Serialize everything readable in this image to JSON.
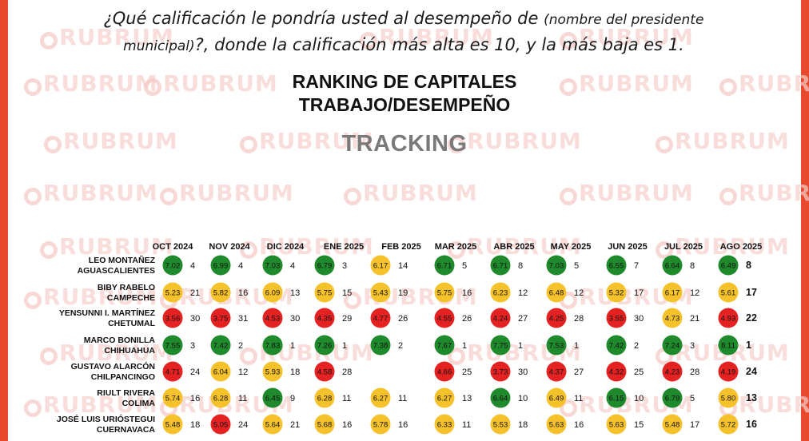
{
  "header": {
    "question_part1": "¿Qué calificación le pondría usted al desempeño de ",
    "question_small1": "(nombre del presidente",
    "question_small2": "municipal)",
    "question_part2": "?, donde la calificación más alta es 10, y la más baja es 1.",
    "title_line1": "RANKING DE CAPITALES",
    "title_line2": "TRABAJO/DESEMPEÑO",
    "subtitle": "TRACKING",
    "watermark": "RUBRUM"
  },
  "colors": {
    "frame": "#e8482c",
    "green": "#1f8a2c",
    "yellow": "#f6c22b",
    "red": "#e52222"
  },
  "chart_data": {
    "type": "table",
    "months": [
      "OCT 2024",
      "NOV 2024",
      "DIC 2024",
      "ENE 2025",
      "FEB 2025",
      "MAR 2025",
      "ABR 2025",
      "MAY 2025",
      "JUN 2025",
      "JUL 2025",
      "AGO 2025"
    ],
    "rows": [
      {
        "name": "LEO MONTAÑEZ",
        "city": "AGUASCALIENTES",
        "cells": [
          {
            "score": "7.02",
            "rank": "4",
            "color": "green"
          },
          {
            "score": "6.99",
            "rank": "4",
            "color": "green"
          },
          {
            "score": "7.03",
            "rank": "4",
            "color": "green"
          },
          {
            "score": "6.79",
            "rank": "3",
            "color": "green"
          },
          {
            "score": "6.17",
            "rank": "14",
            "color": "yellow"
          },
          {
            "score": "6.71",
            "rank": "5",
            "color": "green"
          },
          {
            "score": "6.71",
            "rank": "8",
            "color": "green"
          },
          {
            "score": "7.03",
            "rank": "5",
            "color": "green"
          },
          {
            "score": "6.55",
            "rank": "7",
            "color": "green"
          },
          {
            "score": "6.64",
            "rank": "8",
            "color": "green"
          },
          {
            "score": "6.49",
            "rank": "8",
            "color": "green"
          }
        ]
      },
      {
        "name": "BIBY RABELO",
        "city": "CAMPECHE",
        "cells": [
          {
            "score": "5.23",
            "rank": "21",
            "color": "yellow"
          },
          {
            "score": "5.82",
            "rank": "16",
            "color": "yellow"
          },
          {
            "score": "6.09",
            "rank": "13",
            "color": "yellow"
          },
          {
            "score": "5.75",
            "rank": "15",
            "color": "yellow"
          },
          {
            "score": "5.43",
            "rank": "19",
            "color": "yellow"
          },
          {
            "score": "5.75",
            "rank": "16",
            "color": "yellow"
          },
          {
            "score": "6.23",
            "rank": "12",
            "color": "yellow"
          },
          {
            "score": "6.48",
            "rank": "12",
            "color": "yellow"
          },
          {
            "score": "5.32",
            "rank": "17",
            "color": "yellow"
          },
          {
            "score": "6.17",
            "rank": "12",
            "color": "yellow"
          },
          {
            "score": "5.61",
            "rank": "17",
            "color": "yellow"
          }
        ]
      },
      {
        "name": "YENSUNNI I. MARTÍNEZ",
        "city": "CHETUMAL",
        "cells": [
          {
            "score": "3.56",
            "rank": "30",
            "color": "red"
          },
          {
            "score": "3.75",
            "rank": "31",
            "color": "red"
          },
          {
            "score": "4.53",
            "rank": "30",
            "color": "red"
          },
          {
            "score": "4.35",
            "rank": "29",
            "color": "red"
          },
          {
            "score": "4.77",
            "rank": "26",
            "color": "red"
          },
          {
            "score": "4.55",
            "rank": "26",
            "color": "red"
          },
          {
            "score": "4.24",
            "rank": "27",
            "color": "red"
          },
          {
            "score": "4.25",
            "rank": "28",
            "color": "red"
          },
          {
            "score": "3.55",
            "rank": "30",
            "color": "red"
          },
          {
            "score": "4.73",
            "rank": "21",
            "color": "yellow"
          },
          {
            "score": "4.93",
            "rank": "22",
            "color": "red"
          }
        ]
      },
      {
        "name": "MARCO BONILLA",
        "city": "CHIHUAHUA",
        "cells": [
          {
            "score": "7.55",
            "rank": "3",
            "color": "green"
          },
          {
            "score": "7.42",
            "rank": "2",
            "color": "green"
          },
          {
            "score": "7.83",
            "rank": "1",
            "color": "green"
          },
          {
            "score": "7.26",
            "rank": "1",
            "color": "green"
          },
          {
            "score": "7.38",
            "rank": "2",
            "color": "green"
          },
          {
            "score": "7.67",
            "rank": "1",
            "color": "green"
          },
          {
            "score": "7.75",
            "rank": "1",
            "color": "green"
          },
          {
            "score": "7.53",
            "rank": "1",
            "color": "green"
          },
          {
            "score": "7.42",
            "rank": "2",
            "color": "green"
          },
          {
            "score": "7.24",
            "rank": "3",
            "color": "green"
          },
          {
            "score": "8.11",
            "rank": "1",
            "color": "green"
          }
        ]
      },
      {
        "name": "GUSTAVO ALARCÓN",
        "city": "CHILPANCINGO",
        "cells": [
          {
            "score": "4.71",
            "rank": "24",
            "color": "red"
          },
          {
            "score": "6.04",
            "rank": "12",
            "color": "yellow"
          },
          {
            "score": "5.93",
            "rank": "18",
            "color": "yellow"
          },
          {
            "score": "4.58",
            "rank": "28",
            "color": "red"
          },
          null,
          {
            "score": "4.66",
            "rank": "25",
            "color": "red"
          },
          {
            "score": "3.73",
            "rank": "30",
            "color": "red"
          },
          {
            "score": "4.37",
            "rank": "27",
            "color": "red"
          },
          {
            "score": "4.32",
            "rank": "25",
            "color": "red"
          },
          {
            "score": "4.23",
            "rank": "28",
            "color": "red"
          },
          {
            "score": "4.19",
            "rank": "24",
            "color": "red"
          }
        ]
      },
      {
        "name": "RIULT RIVERA",
        "city": "COLIMA",
        "cells": [
          {
            "score": "5.74",
            "rank": "16",
            "color": "yellow"
          },
          {
            "score": "6.28",
            "rank": "11",
            "color": "yellow"
          },
          {
            "score": "6.45",
            "rank": "9",
            "color": "green"
          },
          {
            "score": "6.28",
            "rank": "11",
            "color": "yellow"
          },
          {
            "score": "6.27",
            "rank": "11",
            "color": "yellow"
          },
          {
            "score": "6.27",
            "rank": "13",
            "color": "yellow"
          },
          {
            "score": "6.64",
            "rank": "10",
            "color": "green"
          },
          {
            "score": "6.49",
            "rank": "11",
            "color": "yellow"
          },
          {
            "score": "6.15",
            "rank": "10",
            "color": "green"
          },
          {
            "score": "6.79",
            "rank": "5",
            "color": "green"
          },
          {
            "score": "5.80",
            "rank": "13",
            "color": "yellow"
          }
        ]
      },
      {
        "name": "JOSÉ LUIS URIÓSTEGUI",
        "city": "CUERNAVACA",
        "cells": [
          {
            "score": "5.48",
            "rank": "18",
            "color": "yellow"
          },
          {
            "score": "5.05",
            "rank": "24",
            "color": "red"
          },
          {
            "score": "5.64",
            "rank": "21",
            "color": "yellow"
          },
          {
            "score": "5.68",
            "rank": "16",
            "color": "yellow"
          },
          {
            "score": "5.78",
            "rank": "16",
            "color": "yellow"
          },
          {
            "score": "6.33",
            "rank": "11",
            "color": "yellow"
          },
          {
            "score": "5.53",
            "rank": "18",
            "color": "yellow"
          },
          {
            "score": "5.63",
            "rank": "16",
            "color": "yellow"
          },
          {
            "score": "5.63",
            "rank": "15",
            "color": "yellow"
          },
          {
            "score": "5.48",
            "rank": "17",
            "color": "yellow"
          },
          {
            "score": "5.72",
            "rank": "16",
            "color": "yellow"
          }
        ]
      }
    ]
  }
}
